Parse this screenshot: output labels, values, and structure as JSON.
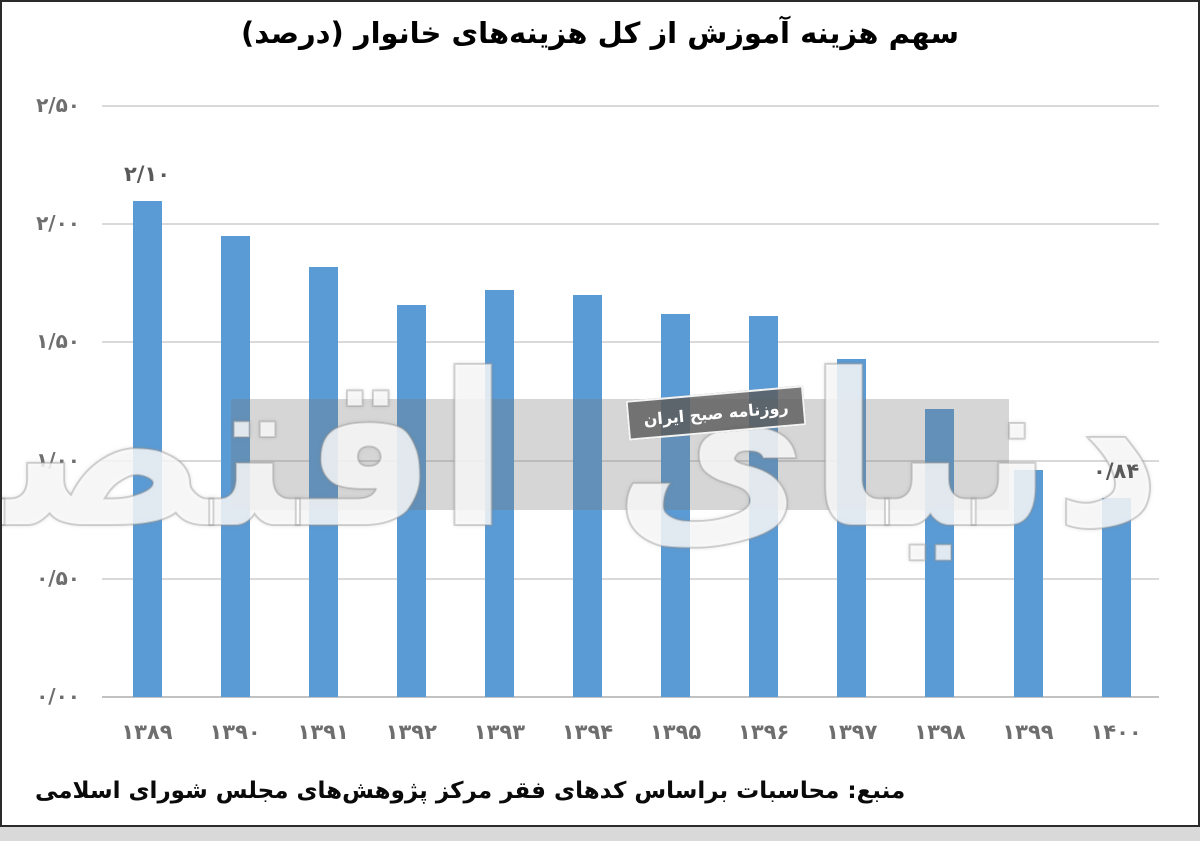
{
  "title": "سهم هزینه آموزش از کل هزینه‌های خانوار (درصد)",
  "source_note": "منبع: محاسبات براساس کدهای فقر مرکز پژوهش‌های مجلس شورای اسلامی",
  "watermark": {
    "logo_text": "دنیای اقتصاد",
    "badge_text": "روزنامه صبح ایران"
  },
  "colors": {
    "bar": "#5b9bd5",
    "grid": "#d9d9d9",
    "axis_text": "#6e6e6e",
    "value_label_text": "#595959",
    "title_text": "#000000",
    "frame_border": "#2b2b2b",
    "watermark_band": "rgba(118,118,118,0.30)"
  },
  "chart_data": {
    "type": "bar",
    "title": "سهم هزینه آموزش از کل هزینه‌های خانوار (درصد)",
    "xlabel": "",
    "ylabel": "",
    "categories": [
      "۱۳۸۹",
      "۱۳۹۰",
      "۱۳۹۱",
      "۱۳۹۲",
      "۱۳۹۳",
      "۱۳۹۴",
      "۱۳۹۵",
      "۱۳۹۶",
      "۱۳۹۷",
      "۱۳۹۸",
      "۱۳۹۹",
      "۱۴۰۰"
    ],
    "categories_latin": [
      1389,
      1390,
      1391,
      1392,
      1393,
      1394,
      1395,
      1396,
      1397,
      1398,
      1399,
      1400
    ],
    "values": [
      2.1,
      1.95,
      1.82,
      1.66,
      1.72,
      1.7,
      1.62,
      1.61,
      1.43,
      1.22,
      0.96,
      0.84
    ],
    "bar_value_labels": [
      "۲/۱۰",
      "",
      "",
      "",
      "",
      "",
      "",
      "",
      "",
      "",
      "",
      "۰/۸۴"
    ],
    "ylim": [
      0,
      2.5
    ],
    "ytick_step": 0.5,
    "ytick_labels_bottom_to_top": [
      "۰/۰۰",
      "۰/۵۰",
      "۱/۰۰",
      "۱/۵۰",
      "۲/۰۰",
      "۲/۵۰"
    ],
    "grid": true,
    "legend": false
  }
}
